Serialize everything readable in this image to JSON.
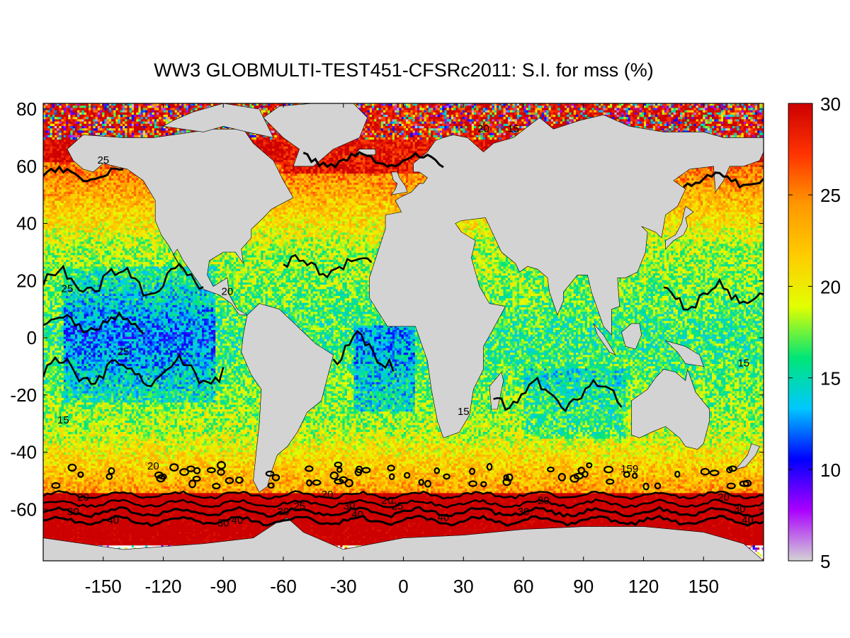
{
  "title": "WW3 GLOBMULTI-TEST451-CFSRc2011: S.I. for mss (%)",
  "map": {
    "projection": "equirectangular",
    "lon_range": [
      -180,
      180
    ],
    "lat_range": [
      -78,
      82
    ],
    "x_ticks": [
      -150,
      -120,
      -90,
      -60,
      -30,
      0,
      30,
      60,
      90,
      120,
      150
    ],
    "y_ticks": [
      -60,
      -40,
      -20,
      0,
      20,
      40,
      60,
      80
    ],
    "land_color": "#d3d3d3",
    "nodata_color": "#ffffff",
    "contour_color": "#000000",
    "contour_levels": [
      15,
      20,
      25,
      30,
      40
    ]
  },
  "colorbar": {
    "min": 5,
    "max": 30,
    "ticks": [
      5,
      10,
      15,
      20,
      25,
      30
    ],
    "colors": [
      "#d3d3d3",
      "#aa00ff",
      "#0000ff",
      "#00c8ff",
      "#00e676",
      "#e1ff00",
      "#ffcc00",
      "#ff9900",
      "#ff3300",
      "#cc0000"
    ]
  },
  "contour_labels": [
    {
      "text": "30",
      "lon": -165,
      "lat": -62
    },
    {
      "text": "40",
      "lon": -145,
      "lat": -65
    },
    {
      "text": "30",
      "lon": -90,
      "lat": -66
    },
    {
      "text": "40",
      "lon": -83,
      "lat": -65
    },
    {
      "text": "20",
      "lon": -160,
      "lat": -57
    },
    {
      "text": "25",
      "lon": -52,
      "lat": -60
    },
    {
      "text": "30",
      "lon": -60,
      "lat": -62
    },
    {
      "text": "20",
      "lon": -38,
      "lat": -56
    },
    {
      "text": "30",
      "lon": -27,
      "lat": -60
    },
    {
      "text": "40",
      "lon": -23,
      "lat": -63
    },
    {
      "text": "20",
      "lon": -8,
      "lat": -58
    },
    {
      "text": "25",
      "lon": -3,
      "lat": -60
    },
    {
      "text": "40",
      "lon": 20,
      "lat": -64
    },
    {
      "text": "20",
      "lon": 70,
      "lat": -58
    },
    {
      "text": "30",
      "lon": 60,
      "lat": -62
    },
    {
      "text": "20",
      "lon": 160,
      "lat": -57
    },
    {
      "text": "30",
      "lon": 168,
      "lat": -61
    },
    {
      "text": "40",
      "lon": 172,
      "lat": -65
    },
    {
      "text": "25",
      "lon": -150,
      "lat": 61
    },
    {
      "text": "25",
      "lon": -168,
      "lat": 16
    },
    {
      "text": "25",
      "lon": -140,
      "lat": -6
    },
    {
      "text": "20",
      "lon": 40,
      "lat": 72
    },
    {
      "text": "15",
      "lon": 55,
      "lat": 72
    },
    {
      "text": "159",
      "lon": 113,
      "lat": -47
    },
    {
      "text": "15",
      "lon": 30,
      "lat": -27
    },
    {
      "text": "20",
      "lon": -88,
      "lat": 15
    },
    {
      "text": "15",
      "lon": -170,
      "lat": -30
    },
    {
      "text": "15",
      "lon": 170,
      "lat": -10
    },
    {
      "text": "20",
      "lon": -125,
      "lat": -46
    }
  ]
}
